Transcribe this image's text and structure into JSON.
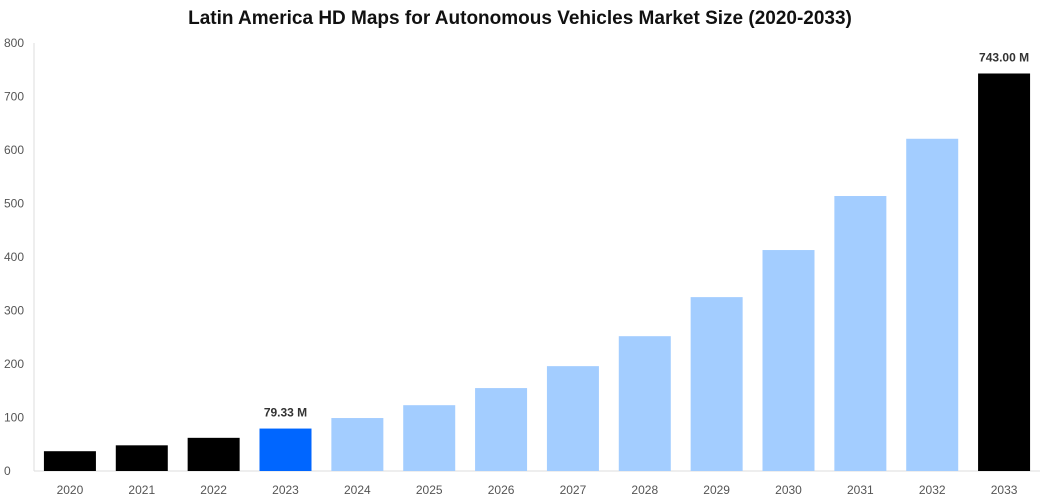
{
  "chart_data": {
    "type": "bar",
    "title": "Latin America HD Maps for Autonomous Vehicles Market Size (2020-2033)",
    "xlabel": "",
    "ylabel": "",
    "ylim": [
      0,
      800
    ],
    "yticks": [
      "0",
      "100",
      "200",
      "300",
      "400",
      "500",
      "600",
      "700",
      "800"
    ],
    "categories": [
      "2020",
      "2021",
      "2022",
      "2023",
      "2024",
      "2025",
      "2026",
      "2027",
      "2028",
      "2029",
      "2030",
      "2031",
      "2032",
      "2033"
    ],
    "values": [
      37,
      48,
      62,
      79.33,
      99,
      123,
      155,
      196,
      252,
      325,
      413,
      514,
      621,
      743
    ],
    "bar_colors": [
      "#000000",
      "#000000",
      "#000000",
      "#0066ff",
      "#a3cdff",
      "#a3cdff",
      "#a3cdff",
      "#a3cdff",
      "#a3cdff",
      "#a3cdff",
      "#a3cdff",
      "#a3cdff",
      "#a3cdff",
      "#000000"
    ],
    "data_labels": {
      "2023": "79.33 M",
      "2033": "743.00 M"
    },
    "grid": false,
    "legend": "none"
  }
}
